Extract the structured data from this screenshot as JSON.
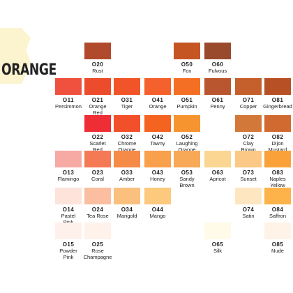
{
  "heading": "ORANGE",
  "swatches": [
    {
      "code": "O20",
      "name": "Rust",
      "color": "#b14a2c"
    },
    {
      "code": "O50",
      "name": "Fox",
      "color": "#c65524"
    },
    {
      "code": "O60",
      "name": "Fulvous",
      "color": "#9a4a2c"
    },
    {
      "code": "O11",
      "name": "Persimmon",
      "color": "#f0503e"
    },
    {
      "code": "O21",
      "name": "Orange Red",
      "color": "#ec4b2c"
    },
    {
      "code": "O31",
      "name": "Tiger",
      "color": "#f25429"
    },
    {
      "code": "O41",
      "name": "Orange",
      "color": "#f4612c"
    },
    {
      "code": "O51",
      "name": "Pumpkin",
      "color": "#f46f23"
    },
    {
      "code": "O61",
      "name": "Penny",
      "color": "#b9562f"
    },
    {
      "code": "O71",
      "name": "Copper",
      "color": "#c55f2b"
    },
    {
      "code": "O81",
      "name": "Gingerbread",
      "color": "#b75125"
    },
    {
      "code": "O22",
      "name": "Scarlet Red",
      "color": "#ee2d34"
    },
    {
      "code": "O32",
      "name": "Chrome Orange",
      "color": "#f2502a"
    },
    {
      "code": "O42",
      "name": "Tawny",
      "color": "#f46420"
    },
    {
      "code": "O52",
      "name": "Laughing Orange",
      "color": "#f69530"
    },
    {
      "code": "O72",
      "name": "Clay Brown",
      "color": "#d2793a"
    },
    {
      "code": "O82",
      "name": "Dijon Mustard",
      "color": "#d06a30"
    },
    {
      "code": "O13",
      "name": "Flamingo",
      "color": "#f7a9a3"
    },
    {
      "code": "O23",
      "name": "Coral",
      "color": "#f47a55"
    },
    {
      "code": "O33",
      "name": "Amber",
      "color": "#f68a47"
    },
    {
      "code": "O43",
      "name": "Honey",
      "color": "#f9a04c"
    },
    {
      "code": "O53",
      "name": "Sandy Brown",
      "color": "#f8a957"
    },
    {
      "code": "O63",
      "name": "Apricot",
      "color": "#fbd692"
    },
    {
      "code": "O73",
      "name": "Sunset",
      "color": "#fbc985"
    },
    {
      "code": "O83",
      "name": "Naples Yellow",
      "color": "#fba13a"
    },
    {
      "code": "O14",
      "name": "Pastel Pink",
      "color": "#fde3da"
    },
    {
      "code": "O24",
      "name": "Tea Rose",
      "color": "#fbbea0"
    },
    {
      "code": "O34",
      "name": "Marigold",
      "color": "#fbc07e"
    },
    {
      "code": "O44",
      "name": "Mango",
      "color": "#fdc97d"
    },
    {
      "code": "O74",
      "name": "Satin",
      "color": "#fde6c0"
    },
    {
      "code": "O84",
      "name": "Saffron",
      "color": "#fdb34a"
    },
    {
      "code": "O15",
      "name": "Powder Pink",
      "color": "#fef1ec"
    },
    {
      "code": "O25",
      "name": "Rose Champagne",
      "color": "#fef2ea"
    },
    {
      "code": "O65",
      "name": "Silk",
      "color": "#fffbe8"
    },
    {
      "code": "O85",
      "name": "Nude",
      "color": "#fef3e6"
    }
  ]
}
